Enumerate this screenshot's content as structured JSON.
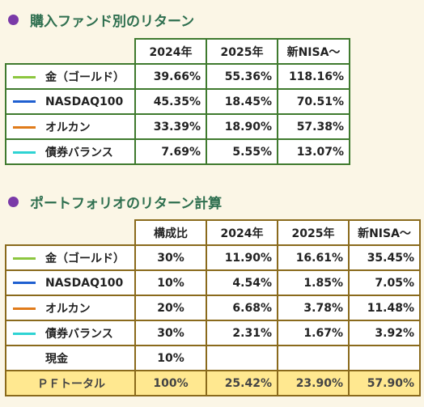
{
  "section1": {
    "title": "購入ファンド別のリターン",
    "headers": [
      "2024年",
      "2025年",
      "新NISA～"
    ],
    "rows": [
      {
        "name": "金（ゴールド）",
        "color": "#8cc63f",
        "values": [
          "39.66%",
          "55.36%",
          "118.16%"
        ]
      },
      {
        "name": "NASDAQ100",
        "color": "#1f5fd0",
        "values": [
          "45.35%",
          "18.45%",
          "70.51%"
        ]
      },
      {
        "name": "オルカン",
        "color": "#e07b1a",
        "values": [
          "33.39%",
          "18.90%",
          "57.38%"
        ]
      },
      {
        "name": "債券バランス",
        "color": "#2ed3d3",
        "values": [
          "7.69%",
          "5.55%",
          "13.07%"
        ]
      }
    ]
  },
  "section2": {
    "title": "ポートフォリオのリターン計算",
    "headers": [
      "構成比",
      "2024年",
      "2025年",
      "新NISA～"
    ],
    "rows": [
      {
        "name": "金（ゴールド）",
        "color": "#8cc63f",
        "values": [
          "30%",
          "11.90%",
          "16.61%",
          "35.45%"
        ]
      },
      {
        "name": "NASDAQ100",
        "color": "#1f5fd0",
        "values": [
          "10%",
          "4.54%",
          "1.85%",
          "7.05%"
        ]
      },
      {
        "name": "オルカン",
        "color": "#e07b1a",
        "values": [
          "20%",
          "6.68%",
          "3.78%",
          "11.48%"
        ]
      },
      {
        "name": "債券バランス",
        "color": "#2ed3d3",
        "values": [
          "30%",
          "2.31%",
          "1.67%",
          "3.92%"
        ]
      },
      {
        "name": "現金",
        "color": "",
        "values": [
          "10%",
          "",
          "",
          ""
        ]
      }
    ],
    "total": {
      "name": "ＰＦトータル",
      "values": [
        "100%",
        "25.42%",
        "23.90%",
        "57.90%"
      ]
    }
  },
  "colors": {
    "accent_bullet": "#7a3aa8",
    "title_text": "#2e6f4f",
    "total_bg": "#ffe890"
  }
}
